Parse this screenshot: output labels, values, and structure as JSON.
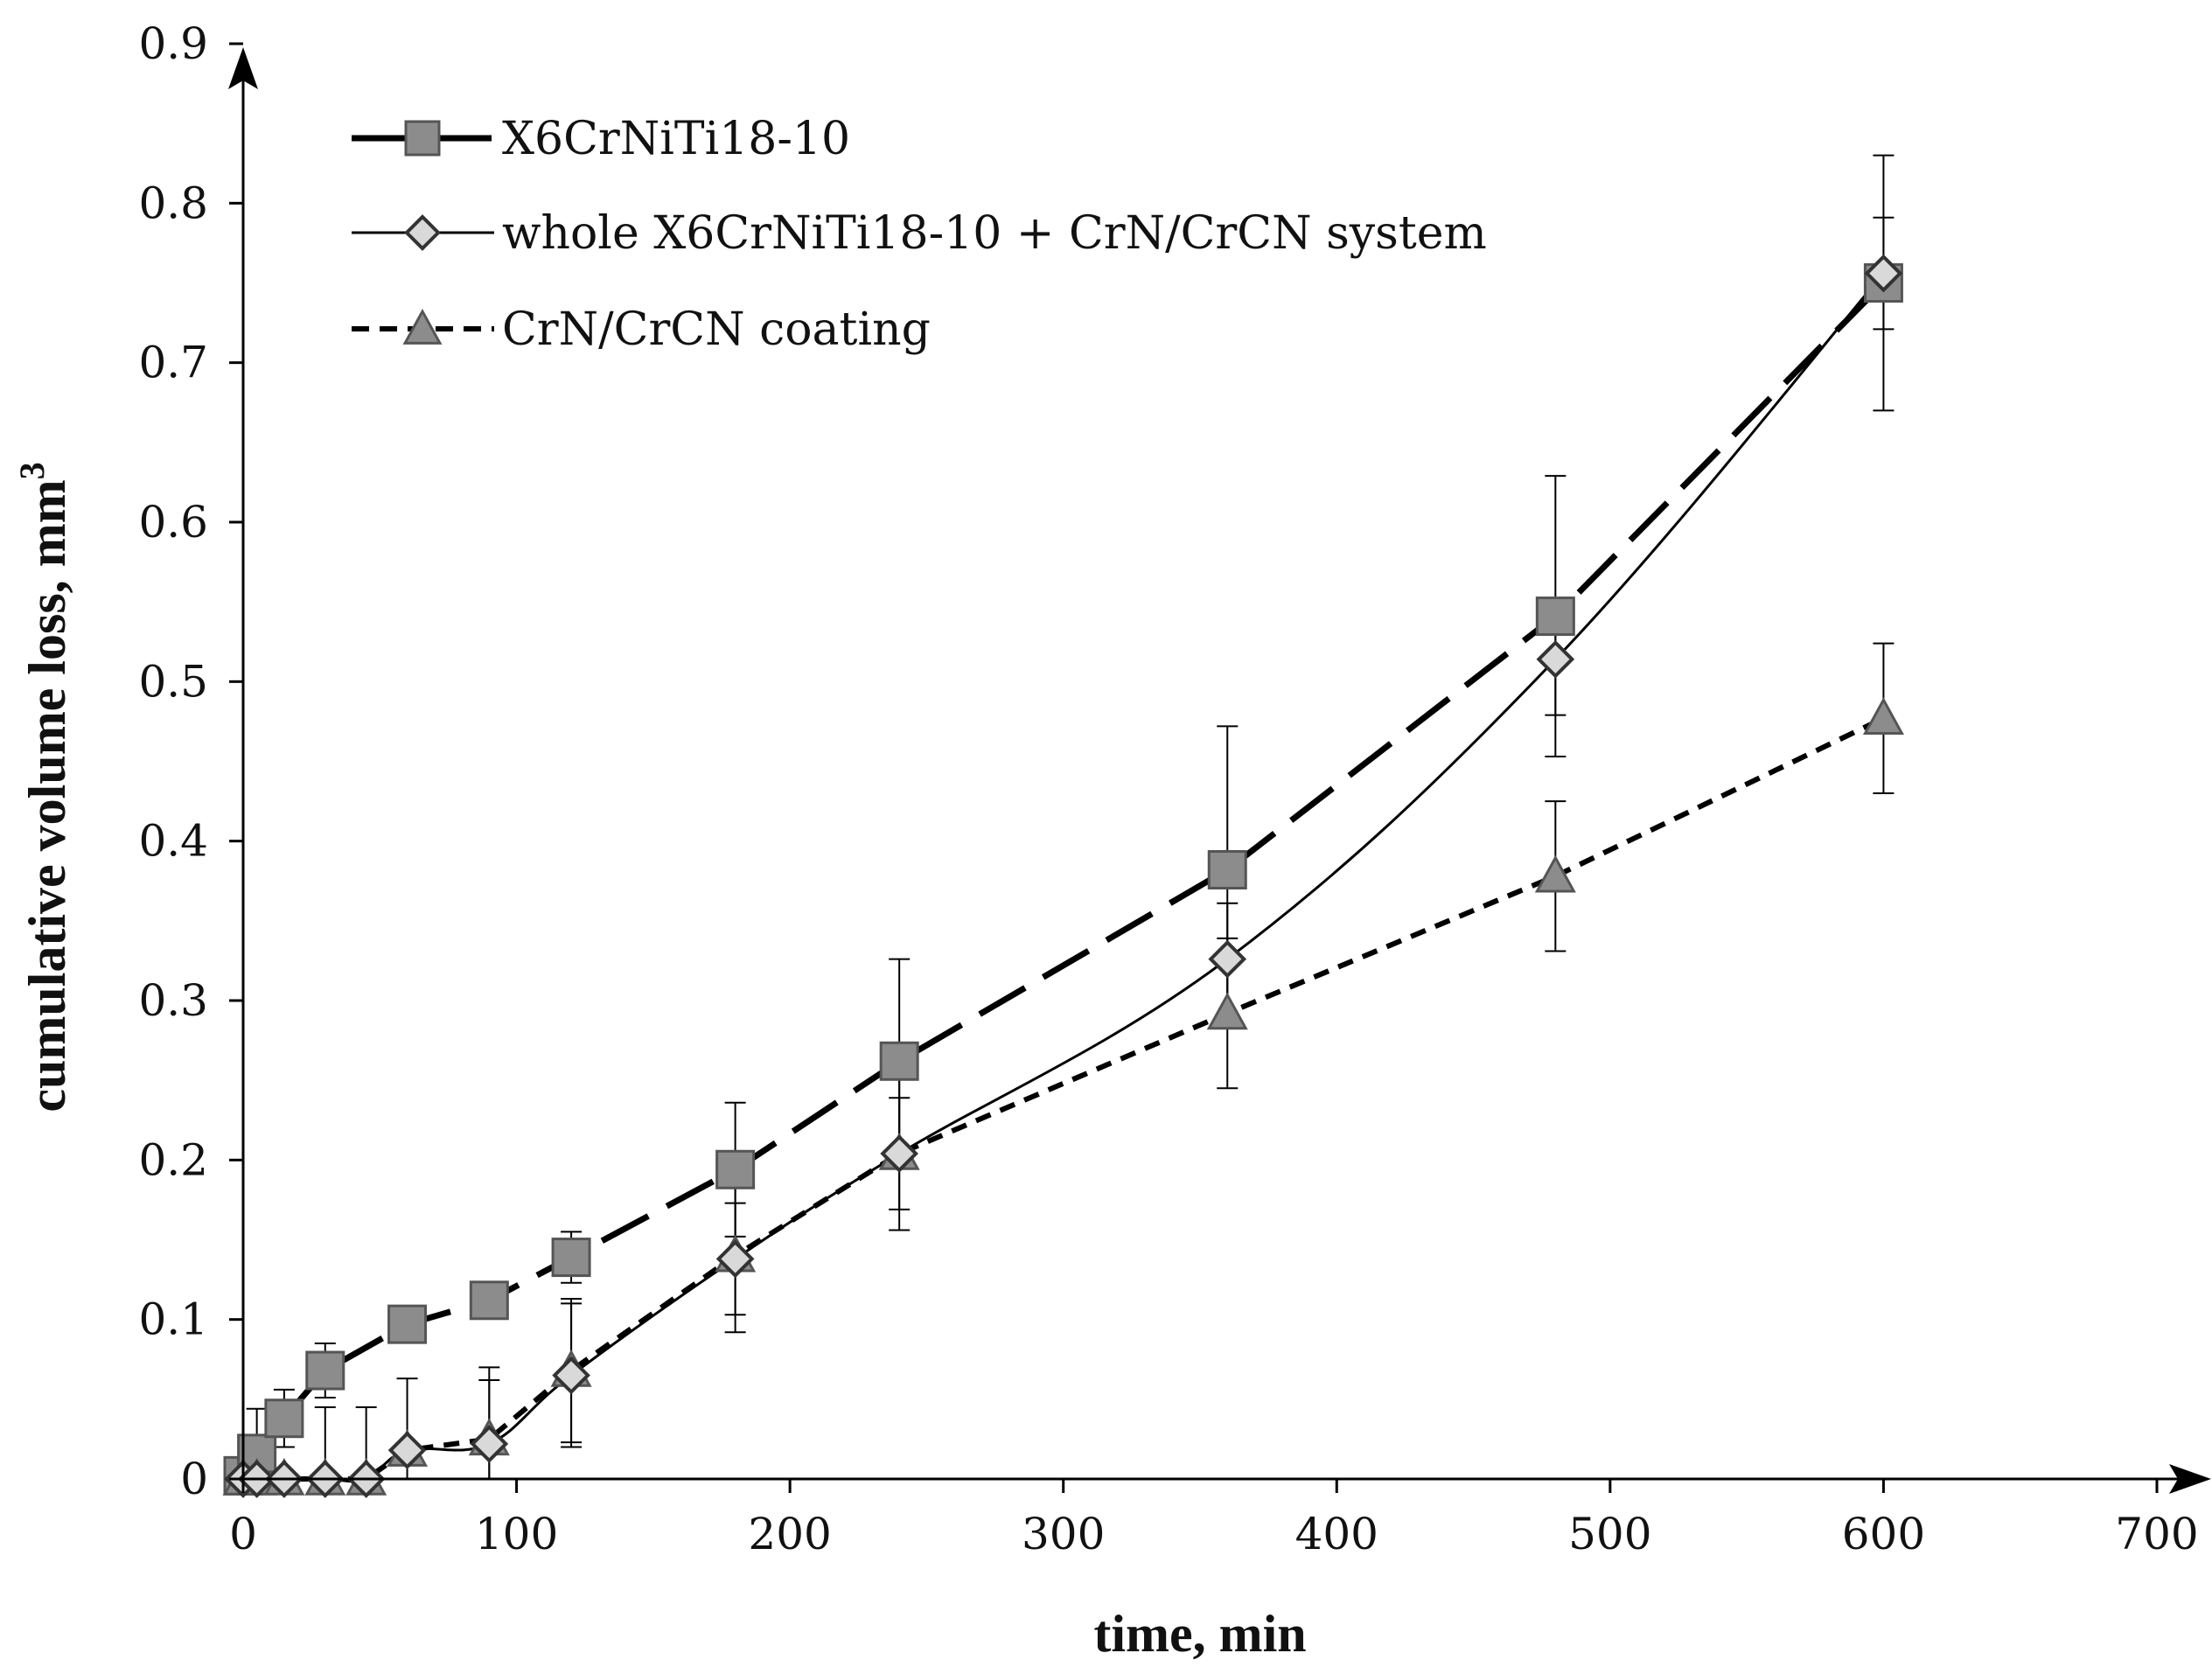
{
  "chart_data": {
    "type": "line",
    "title": "",
    "xlabel": "time, min",
    "ylabel": "cumulative volume loss, mm",
    "ylabel_superscript": "3",
    "xlim": [
      0,
      700
    ],
    "ylim": [
      0,
      0.9
    ],
    "x_ticks": [
      0,
      100,
      200,
      300,
      400,
      500,
      600,
      700
    ],
    "y_ticks": [
      0,
      0.1,
      0.2,
      0.3,
      0.4,
      0.5,
      0.6,
      0.7,
      0.8,
      0.9
    ],
    "x_tick_labels": [
      "0",
      "100",
      "200",
      "300",
      "400",
      "500",
      "600",
      "700"
    ],
    "y_tick_labels": [
      "0",
      "0.1",
      "0.2",
      "0.3",
      "0.4",
      "0.5",
      "0.6",
      "0.7",
      "0.8",
      "0.9"
    ],
    "grid": false,
    "legend_position": "top-left",
    "series": [
      {
        "name": "X6CrNiTi18-10",
        "marker": "square",
        "line_style": "long-dash",
        "marker_color": "#8c8c8c",
        "x": [
          0,
          5,
          15,
          30,
          60,
          90,
          120,
          180,
          240,
          360,
          480,
          600
        ],
        "y": [
          0.002,
          0.016,
          0.038,
          0.068,
          0.097,
          0.112,
          0.139,
          0.194,
          0.262,
          0.382,
          0.541,
          0.75
        ],
        "errors": [
          0,
          0.028,
          0.018,
          0.017,
          0,
          0,
          0.016,
          0.042,
          0.064,
          0.09,
          0.088,
          0.08
        ]
      },
      {
        "name": "whole X6CrNiTi18-10 + CrN/CrCN system",
        "marker": "diamond",
        "line_style": "solid-smooth",
        "marker_color": "#d9d9d9",
        "x": [
          0,
          5,
          15,
          30,
          45,
          60,
          90,
          120,
          180,
          240,
          360,
          480,
          600
        ],
        "y": [
          0,
          0,
          0,
          0,
          0,
          0.018,
          0.022,
          0.065,
          0.138,
          0.204,
          0.326,
          0.514,
          0.756
        ],
        "errors": [
          0,
          0,
          0,
          0,
          0,
          0,
          0.04,
          0.045,
          0.035,
          0.035,
          0.035,
          0.035,
          0.035
        ]
      },
      {
        "name": "CrN/CrCN coating",
        "marker": "triangle",
        "line_style": "short-dash",
        "marker_color": "#8c8c8c",
        "x": [
          0,
          5,
          15,
          30,
          45,
          60,
          90,
          120,
          180,
          240,
          360,
          480,
          600
        ],
        "y": [
          0,
          0,
          0,
          0,
          0,
          0.018,
          0.025,
          0.068,
          0.14,
          0.204,
          0.292,
          0.378,
          0.477
        ],
        "errors": [
          0,
          0,
          0,
          0.045,
          0.045,
          0.045,
          0.045,
          0.045,
          0.048,
          0.048,
          0.047,
          0.047,
          0.047
        ]
      }
    ]
  }
}
